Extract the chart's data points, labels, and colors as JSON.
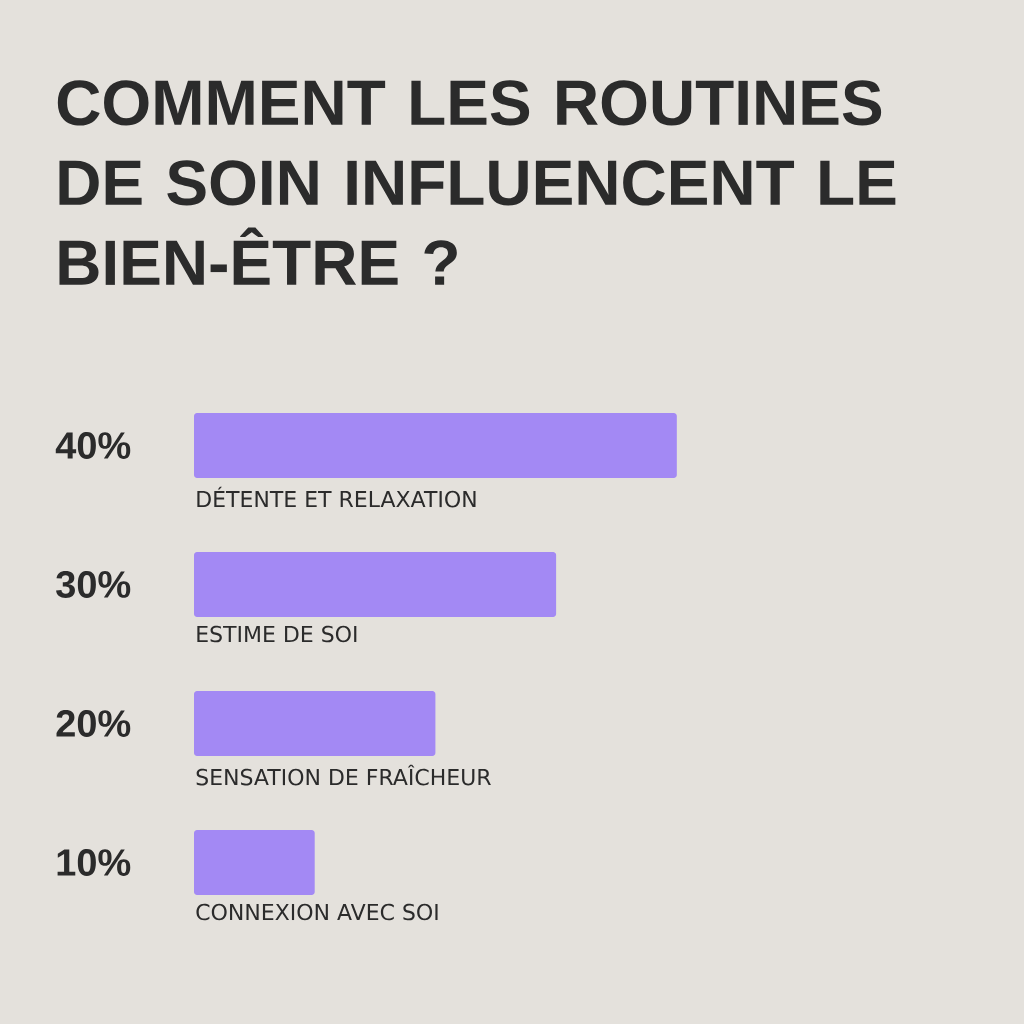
{
  "chart_data": {
    "type": "bar",
    "orientation": "horizontal",
    "title": "COMMENT LES ROUTINES DE SOIN INFLUENCENT LE BIEN-ÊTRE ?",
    "categories": [
      "DÉTENTE ET RELAXATION",
      "ESTIME DE SOI",
      "SENSATION DE FRAÎCHEUR",
      "CONNEXION AVEC SOI"
    ],
    "values": [
      40,
      30,
      20,
      10
    ],
    "value_labels": [
      "40%",
      "30%",
      "20%",
      "10%"
    ],
    "color": "#a389f4"
  }
}
